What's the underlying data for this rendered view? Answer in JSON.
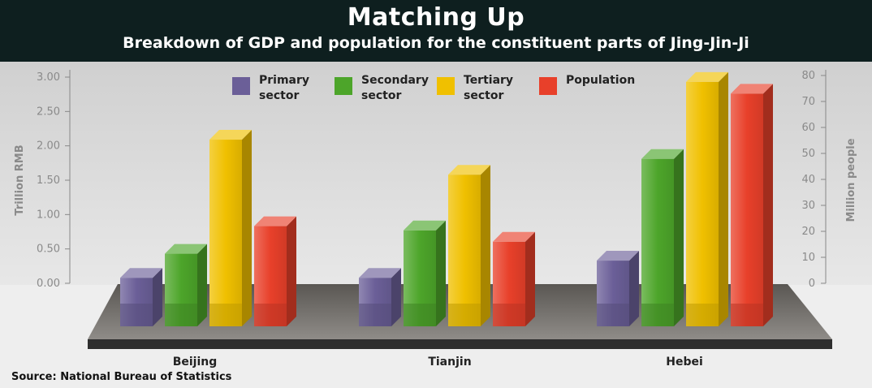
{
  "header": {
    "title": "Matching Up",
    "subtitle": "Breakdown of GDP and population for the constituent parts of Jing-Jin-Ji"
  },
  "source": "Source: National Bureau of Statistics",
  "colors": {
    "primary": "#6b5f98",
    "secondary": "#4da52a",
    "tertiary": "#f0c000",
    "population": "#e8402a",
    "header_bg": "#0e1f1f"
  },
  "chart_data": {
    "type": "bar",
    "categories": [
      "Beijing",
      "Tianjin",
      "Hebei"
    ],
    "series": [
      {
        "name": "Primary sector",
        "legend_lines": [
          "Primary",
          "sector"
        ],
        "axis": "left",
        "values": [
          0.08,
          0.08,
          0.33
        ]
      },
      {
        "name": "Secondary sector",
        "legend_lines": [
          "Secondary",
          "sector"
        ],
        "axis": "left",
        "values": [
          0.43,
          0.77,
          1.81
        ]
      },
      {
        "name": "Tertiary sector",
        "legend_lines": [
          "Tertiary",
          "sector"
        ],
        "axis": "left",
        "values": [
          2.09,
          1.58,
          2.93
        ]
      },
      {
        "name": "Population",
        "legend_lines": [
          "Population"
        ],
        "axis": "right",
        "values": [
          22,
          16,
          73
        ]
      }
    ],
    "y_left": {
      "label": "Trillion RMB",
      "ticks": [
        "0.00",
        "0.50",
        "1.00",
        "1.50",
        "2.00",
        "2.50",
        "3.00"
      ],
      "ylim": [
        0,
        3
      ]
    },
    "y_right": {
      "label": "Million people",
      "ticks": [
        "0",
        "10",
        "20",
        "30",
        "40",
        "50",
        "60",
        "70",
        "80"
      ],
      "ylim": [
        0,
        80
      ]
    },
    "legend_placement": "top"
  }
}
